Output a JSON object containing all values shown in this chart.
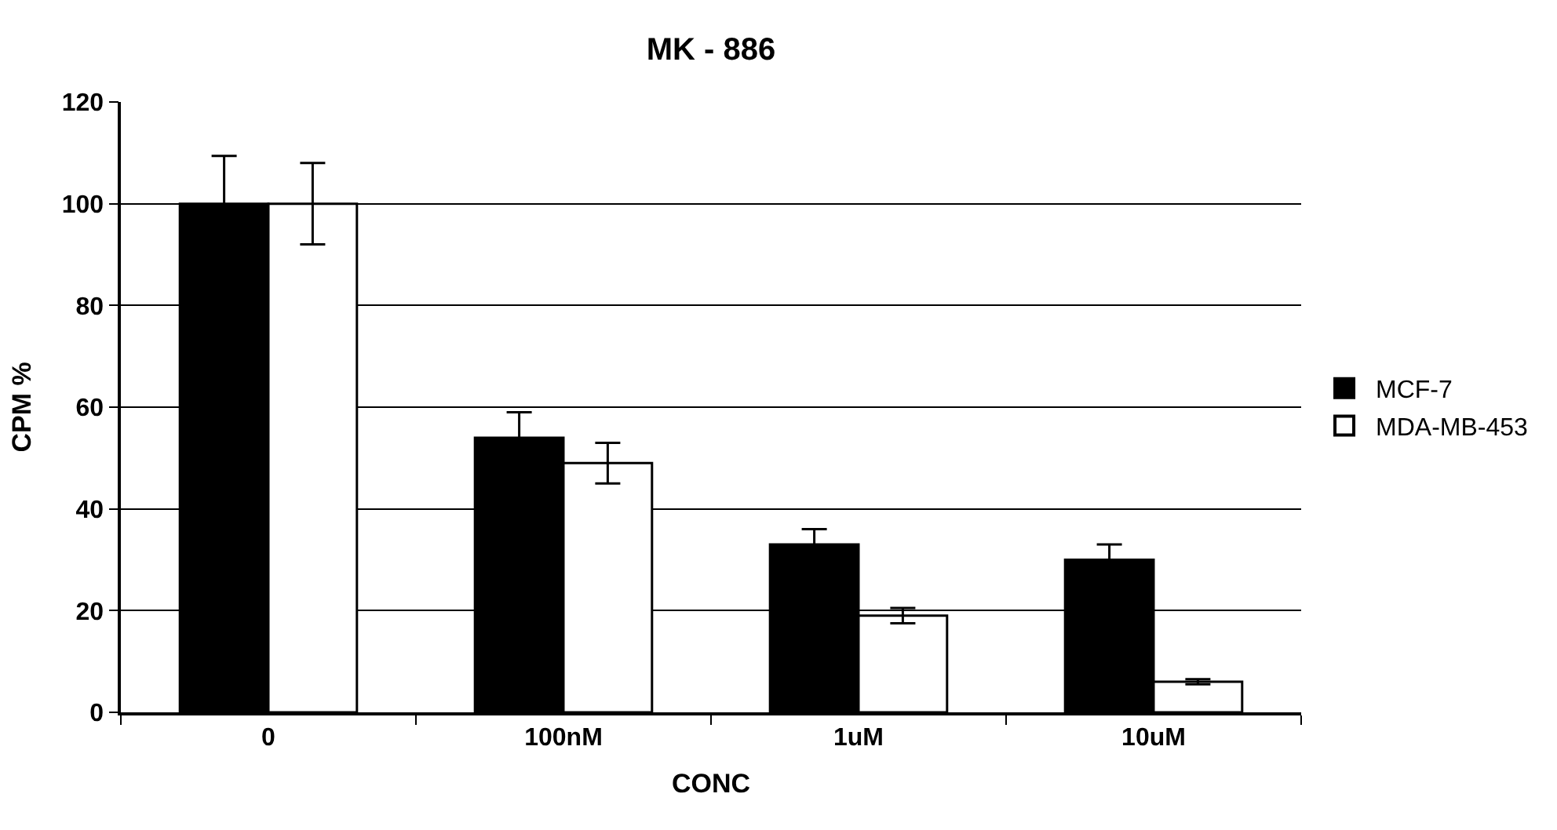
{
  "chart_data": {
    "type": "bar",
    "title": "MK - 886",
    "xlabel": "CONC",
    "ylabel": "CPM %",
    "categories": [
      "0",
      "100nM",
      "1uM",
      "10uM"
    ],
    "series": [
      {
        "name": "MCF-7",
        "color": "#000000",
        "values": [
          100,
          54,
          33,
          30
        ],
        "errors": [
          9.4,
          5,
          3,
          3
        ]
      },
      {
        "name": "MDA-MB-453",
        "color": "#ffffff",
        "values": [
          100,
          49,
          19,
          6
        ],
        "errors": [
          8,
          4,
          1.5,
          0.5
        ]
      }
    ],
    "ylim": [
      0,
      120
    ],
    "yticks": [
      0,
      20,
      40,
      60,
      80,
      100,
      120
    ],
    "grid": "y",
    "legend": "right"
  }
}
